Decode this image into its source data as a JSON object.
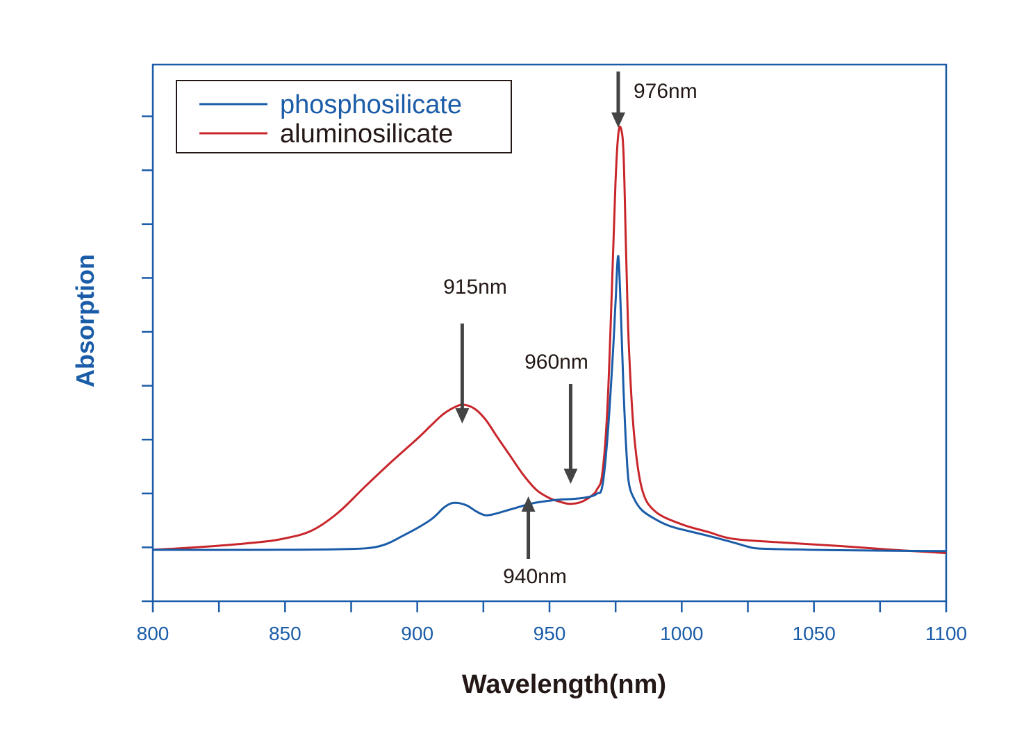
{
  "chart_data": {
    "type": "line",
    "xlabel": "Wavelength(nm)",
    "ylabel": "Absorption",
    "xlim": [
      800,
      1100
    ],
    "xticks": [
      800,
      850,
      900,
      950,
      1000,
      1050,
      1100
    ],
    "y_tick_labels_shown": false,
    "grid": false,
    "legend_position": "top-left",
    "colors": {
      "axis": "#1a5ca8",
      "phosphosilicate": "#1a5ca8",
      "aluminosilicate": "#c8262b",
      "arrow": "#444444",
      "text": "#231815"
    },
    "series": [
      {
        "name": "phosphosilicate",
        "x": [
          800,
          840,
          870,
          885,
          895,
          905,
          910,
          913,
          916,
          919,
          922,
          925,
          928,
          935,
          940,
          945,
          950,
          955,
          960,
          965,
          968,
          970,
          972,
          974,
          975,
          976,
          977,
          978,
          979,
          980,
          982,
          985,
          990,
          995,
          1000,
          1010,
          1020,
          1025,
          1030,
          1050,
          1070,
          1100
        ],
        "y": [
          0.0,
          0.0,
          0.01,
          0.05,
          0.23,
          0.47,
          0.66,
          0.73,
          0.73,
          0.69,
          0.61,
          0.55,
          0.55,
          0.63,
          0.69,
          0.74,
          0.77,
          0.79,
          0.8,
          0.83,
          0.88,
          1.0,
          1.8,
          3.1,
          3.9,
          4.6,
          3.7,
          2.5,
          1.6,
          1.05,
          0.8,
          0.62,
          0.48,
          0.38,
          0.32,
          0.22,
          0.11,
          0.05,
          0.02,
          0.0,
          -0.01,
          -0.02
        ]
      },
      {
        "name": "aluminosilicate",
        "x": [
          800,
          820,
          840,
          850,
          860,
          870,
          880,
          890,
          900,
          905,
          910,
          915,
          918,
          922,
          926,
          930,
          935,
          940,
          945,
          950,
          955,
          958,
          962,
          966,
          968,
          970,
          972,
          974,
          975,
          976,
          977,
          978,
          979,
          980,
          982,
          985,
          990,
          1000,
          1010,
          1020,
          1040,
          1060,
          1080,
          1100
        ],
        "y": [
          0.0,
          0.05,
          0.12,
          0.18,
          0.3,
          0.58,
          0.98,
          1.37,
          1.74,
          1.94,
          2.13,
          2.25,
          2.27,
          2.2,
          2.03,
          1.78,
          1.48,
          1.18,
          0.94,
          0.81,
          0.74,
          0.72,
          0.75,
          0.85,
          0.95,
          1.2,
          2.3,
          4.6,
          5.8,
          6.5,
          6.6,
          6.2,
          4.6,
          3.2,
          1.8,
          0.95,
          0.6,
          0.4,
          0.28,
          0.17,
          0.11,
          0.06,
          0.0,
          -0.05
        ]
      }
    ],
    "annotations": [
      {
        "text": "976nm",
        "x": 976,
        "direction": "down"
      },
      {
        "text": "915nm",
        "x": 917,
        "direction": "down"
      },
      {
        "text": "960nm",
        "x": 958,
        "direction": "down"
      },
      {
        "text": "940nm",
        "x": 942,
        "direction": "up"
      }
    ]
  }
}
